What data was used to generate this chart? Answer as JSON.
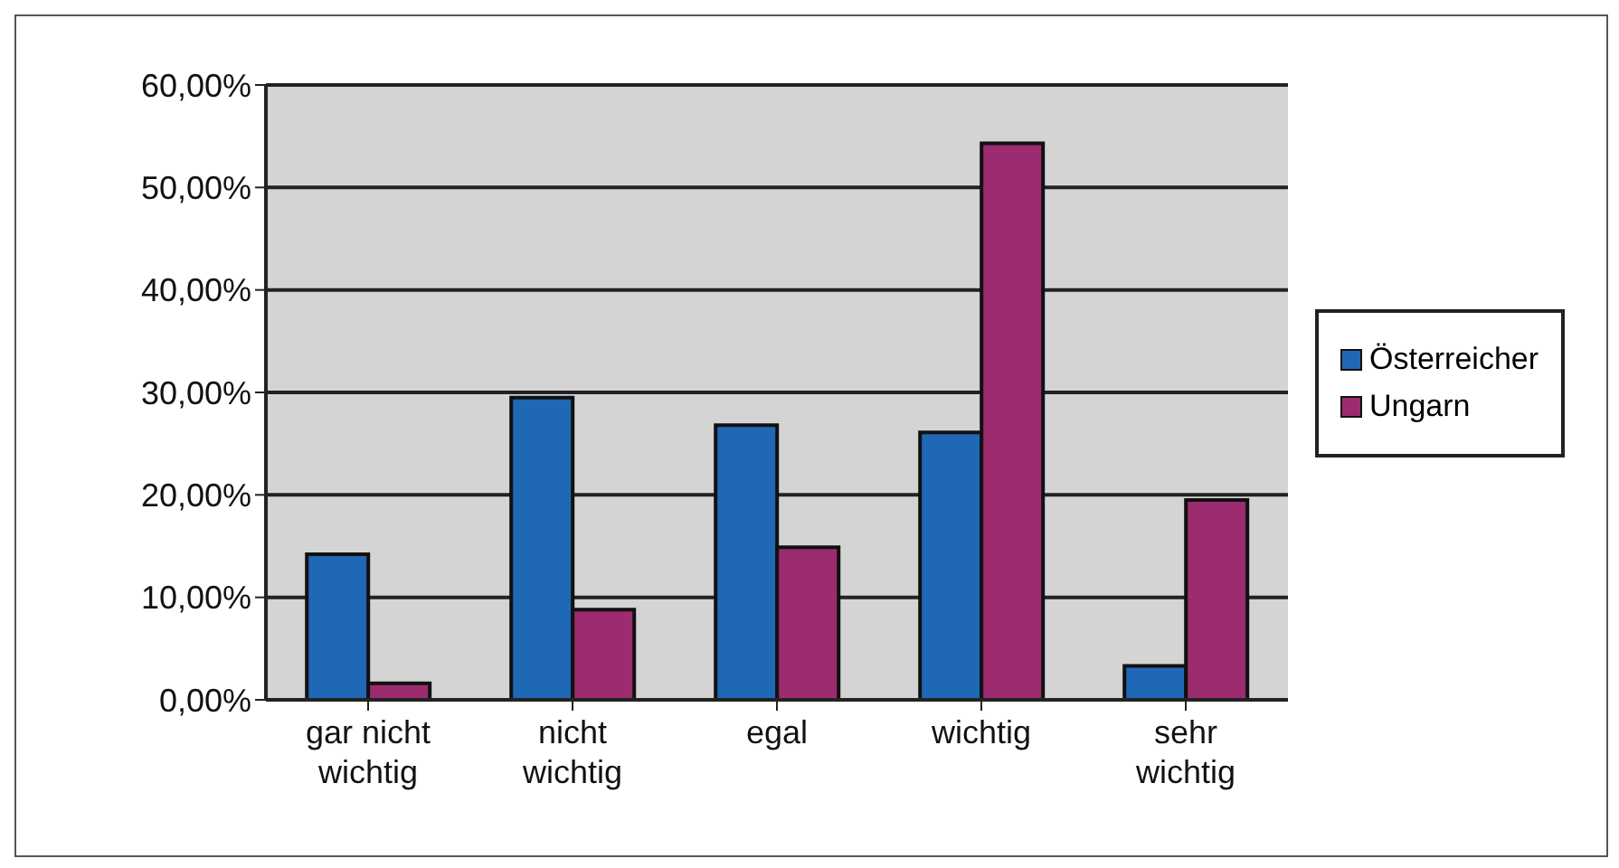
{
  "chart_data": {
    "type": "bar",
    "categories": [
      "gar nicht wichtig",
      "nicht wichtig",
      "egal",
      "wichtig",
      "sehr wichtig"
    ],
    "series": [
      {
        "name": "Österreicher",
        "color": "#1f68b5",
        "values": [
          14.2,
          29.5,
          26.8,
          26.1,
          3.3
        ]
      },
      {
        "name": "Ungarn",
        "color": "#9c2b70",
        "values": [
          1.6,
          8.8,
          14.9,
          54.3,
          19.5
        ]
      }
    ],
    "ylim": [
      0,
      60
    ],
    "yticks": [
      {
        "value": 0,
        "label": "0,00%"
      },
      {
        "value": 10,
        "label": "10,00%"
      },
      {
        "value": 20,
        "label": "20,00%"
      },
      {
        "value": 30,
        "label": "30,00%"
      },
      {
        "value": 40,
        "label": "40,00%"
      },
      {
        "value": 50,
        "label": "50,00%"
      },
      {
        "value": 60,
        "label": "60,00%"
      }
    ],
    "grid": "y",
    "legend": "right"
  }
}
